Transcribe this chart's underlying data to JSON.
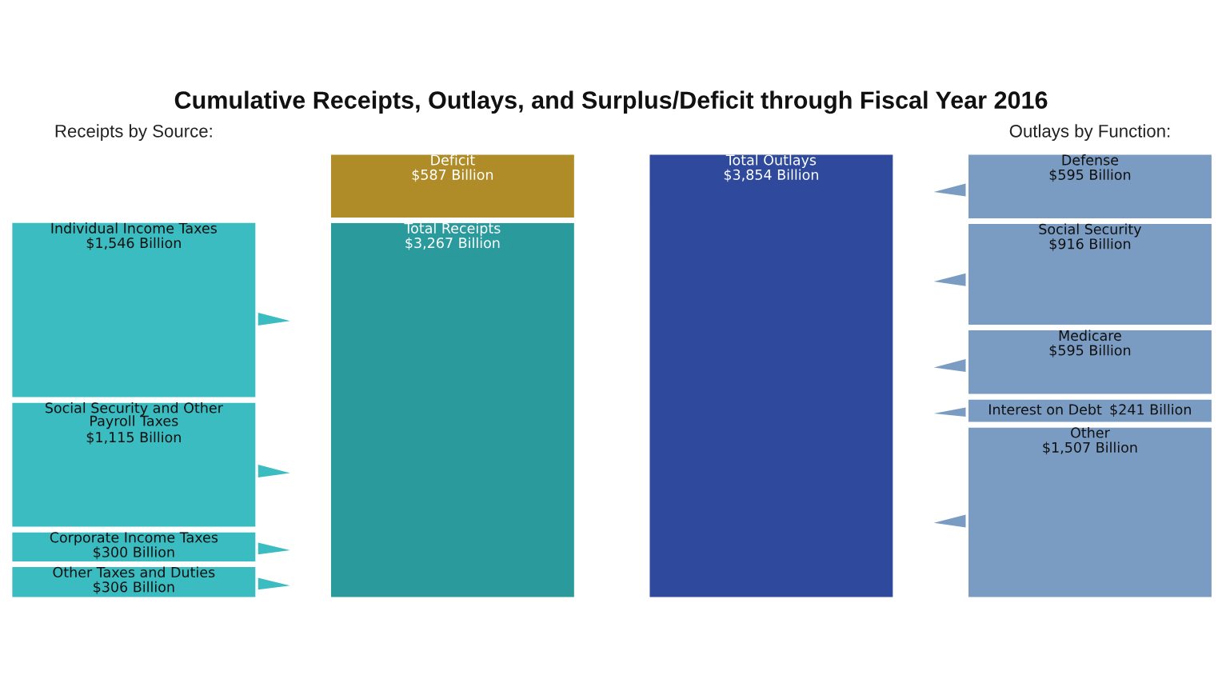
{
  "chart_data": {
    "type": "bar",
    "stacked": true,
    "title": "Cumulative Receipts, Outlays, and Surplus/Deficit through Fiscal Year 2016",
    "annotations": [
      "Receipts by Source:",
      "Outlays by Function:"
    ],
    "categories": [
      null,
      null,
      null,
      null
    ],
    "series": [
      {
        "name": "Other Taxes and Duties",
        "color": "#3bbcc0",
        "values": [
          306,
          null,
          null,
          null
        ],
        "value_labels": [
          "$306 Billion",
          null,
          null,
          null
        ]
      },
      {
        "name": "Corporate Income Taxes",
        "color": "#3bbcc0",
        "values": [
          300,
          null,
          null,
          null
        ],
        "value_labels": [
          "$300 Billion",
          null,
          null,
          null
        ]
      },
      {
        "name": "Social Security and Other\nPayroll Taxes",
        "color": "#3bbcc0",
        "values": [
          1115,
          null,
          null,
          null
        ],
        "value_labels": [
          "$1,115 Billion",
          null,
          null,
          null
        ]
      },
      {
        "name": "Individual Income Taxes",
        "color": "#3bbcc0",
        "values": [
          1546,
          null,
          null,
          null
        ],
        "value_labels": [
          "$1,546 Billion",
          null,
          null,
          null
        ]
      },
      {
        "name": "Total Receipts",
        "color": "#2a9a9c",
        "values": [
          null,
          3267,
          null,
          null
        ],
        "value_labels": [
          null,
          "$3,267 Billion",
          null,
          null
        ]
      },
      {
        "name": "Deficit",
        "color": "#b08c28",
        "values": [
          null,
          587,
          null,
          null
        ],
        "value_labels": [
          null,
          "$587 Billion",
          null,
          null
        ]
      },
      {
        "name": "Total Outlays",
        "color": "#2f4a9c",
        "values": [
          null,
          null,
          3854,
          null
        ],
        "value_labels": [
          null,
          null,
          "$3,854 Billion",
          null
        ]
      },
      {
        "name": "Other",
        "color": "#7a9cc2",
        "values": [
          null,
          null,
          null,
          1507
        ],
        "value_labels": [
          null,
          null,
          null,
          "$1,507 Billion"
        ]
      },
      {
        "name": "Interest on Debt",
        "color": "#7a9cc2",
        "values": [
          null,
          null,
          null,
          241
        ],
        "value_labels": [
          null,
          null,
          null,
          "$241 Billion"
        ]
      },
      {
        "name": "Medicare",
        "color": "#7a9cc2",
        "values": [
          null,
          null,
          null,
          595
        ],
        "value_labels": [
          null,
          null,
          null,
          "$595 Billion"
        ]
      },
      {
        "name": "Social Security",
        "color": "#7a9cc2",
        "values": [
          null,
          null,
          null,
          916
        ],
        "value_labels": [
          null,
          null,
          null,
          "$916 Billion"
        ]
      },
      {
        "name": "Defense",
        "color": "#7a9cc2",
        "values": [
          null,
          null,
          null,
          595
        ],
        "value_labels": [
          null,
          null,
          null,
          "$595 Billion"
        ]
      }
    ]
  }
}
